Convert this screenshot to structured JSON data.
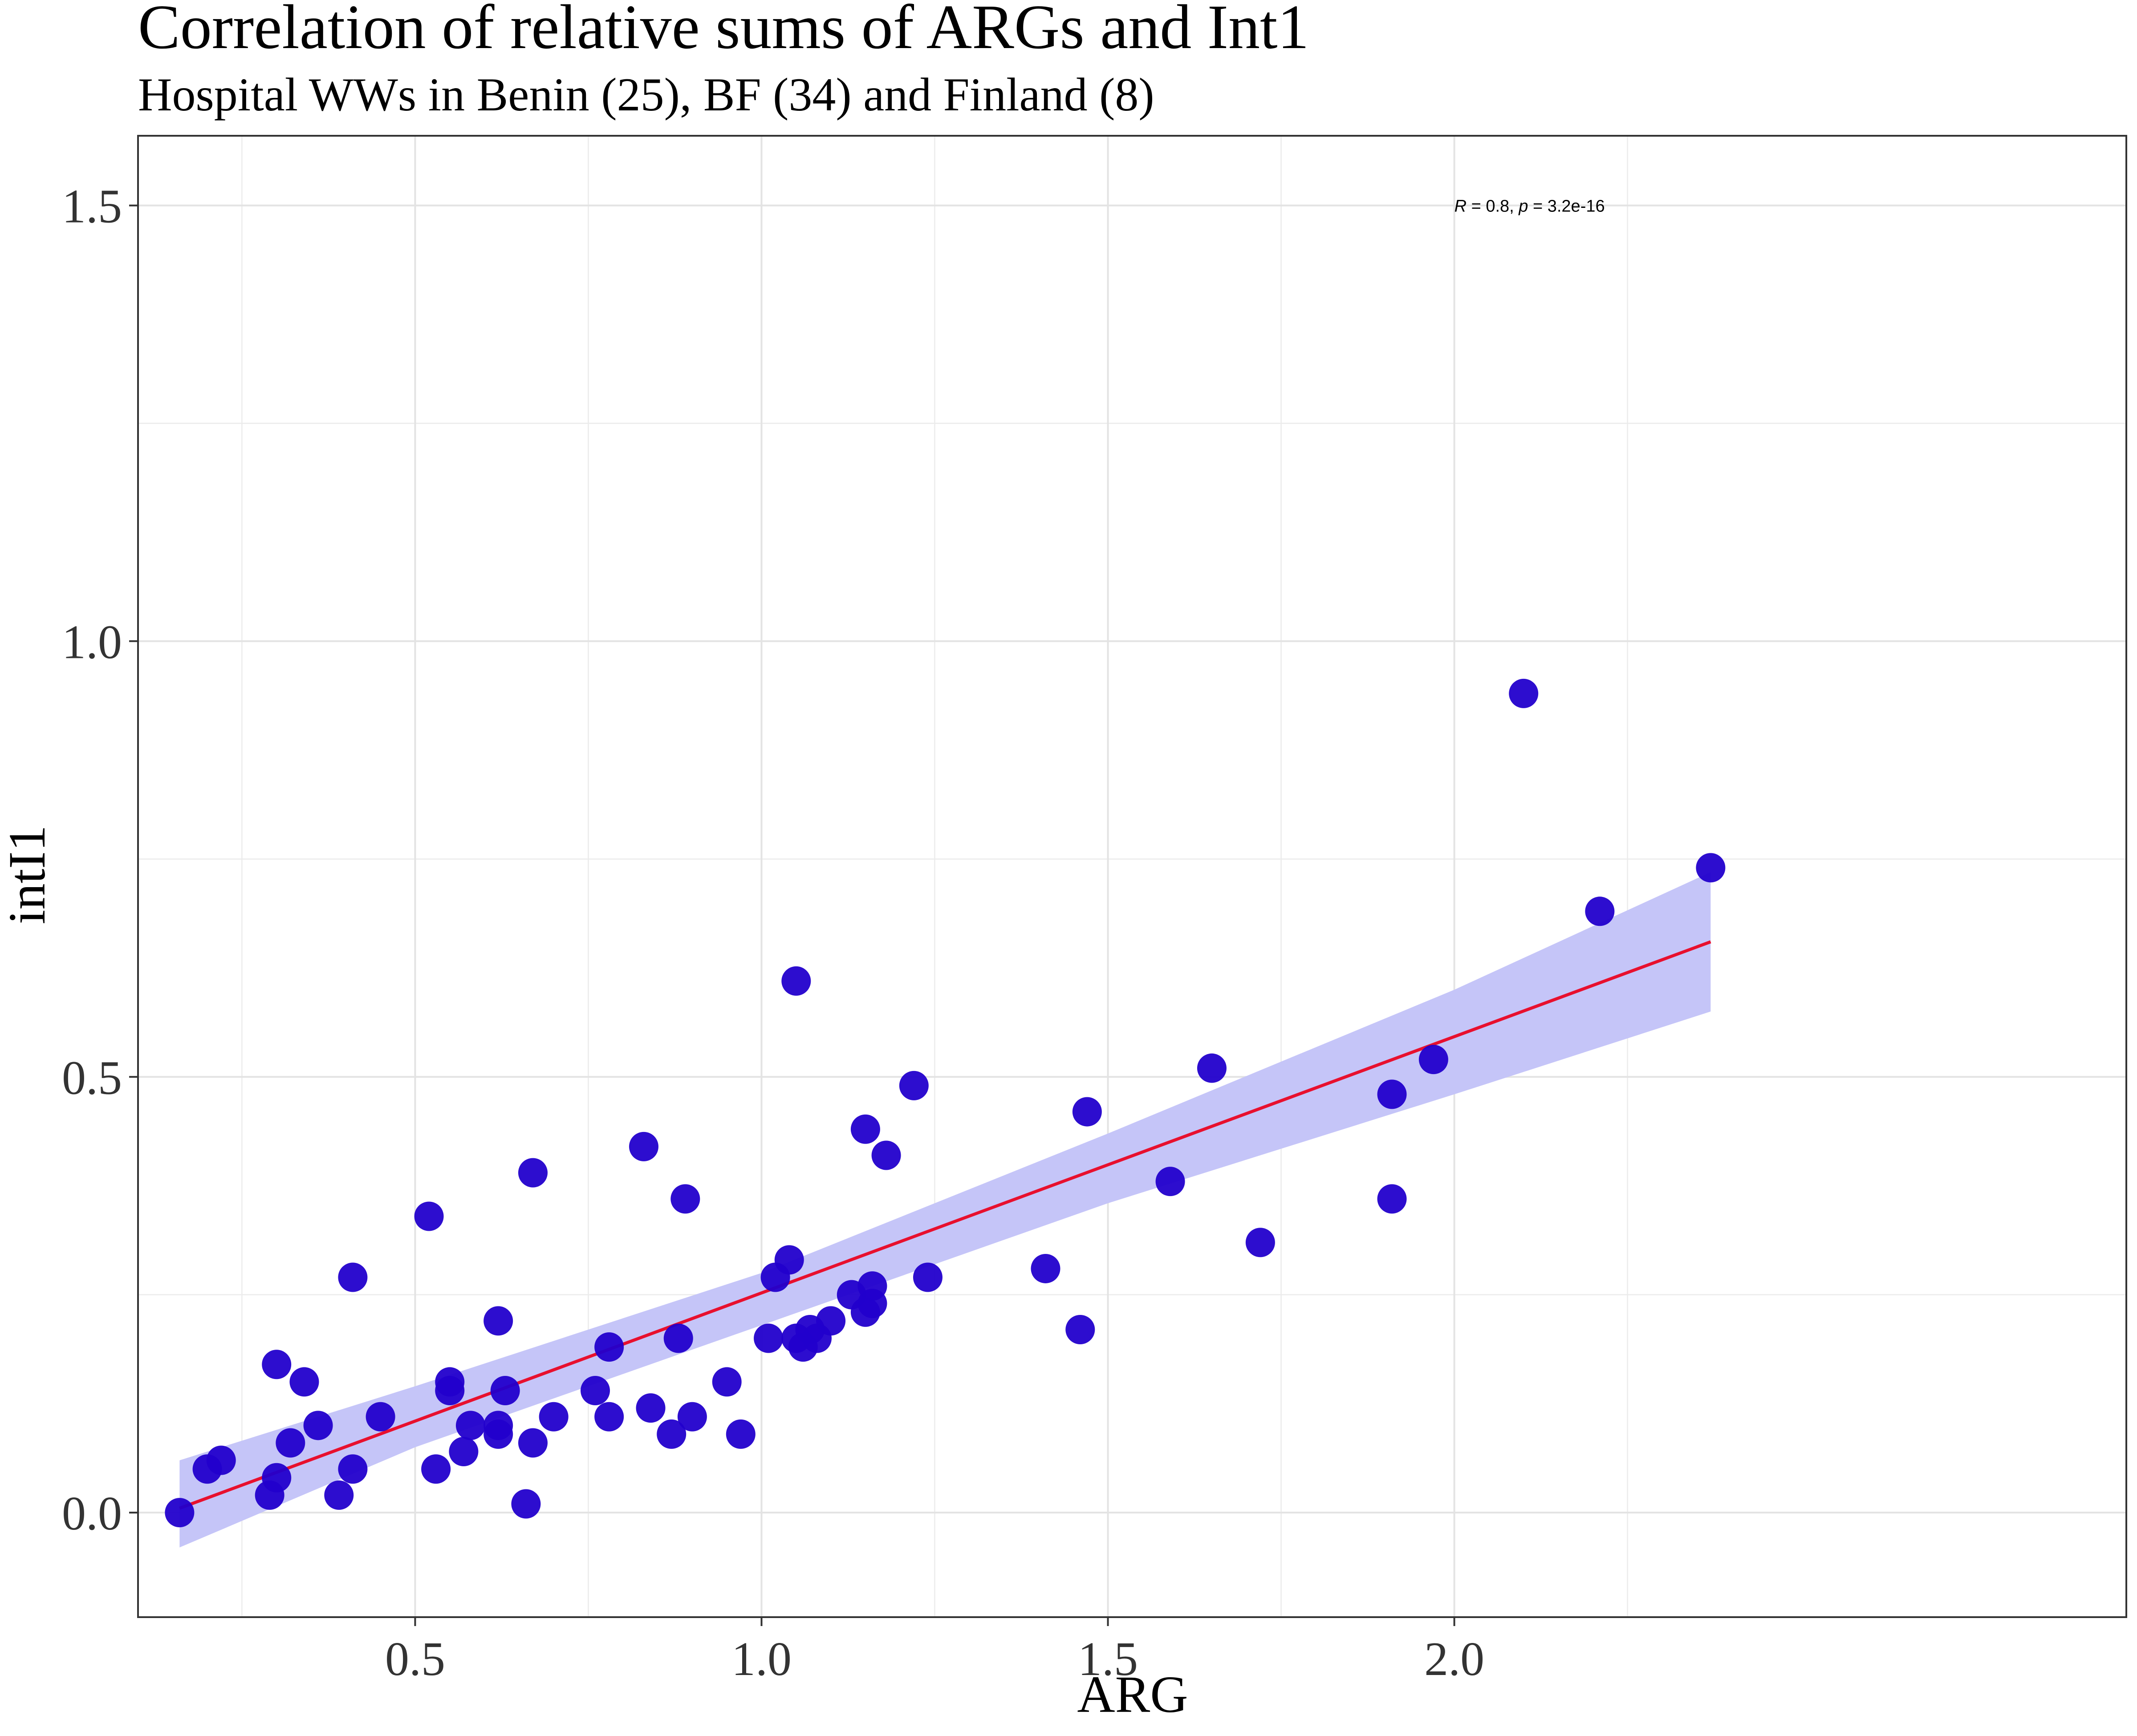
{
  "chart_data": {
    "type": "scatter",
    "title": "Correlation of relative sums of ARGs and Int1",
    "subtitle": "Hospital WWs in Benin (25), BF (34) and Finland (8)",
    "xlabel": "ARG",
    "ylabel": "intI1",
    "xlim": [
      0.1,
      2.97
    ],
    "ylim": [
      -0.12,
      1.58
    ],
    "xticks": [
      0.5,
      1.0,
      1.5,
      2.0
    ],
    "xtick_labels": [
      "0.5",
      "1.0",
      "1.5",
      "2.0"
    ],
    "yticks": [
      0.0,
      0.5,
      1.0,
      1.5
    ],
    "ytick_labels": [
      "0.0",
      "0.5",
      "1.0",
      "1.5"
    ],
    "grid": true,
    "annotation": {
      "r_label": "R",
      "r_value": " = 0.8, ",
      "p_label": "p",
      "p_value": " = 3.2e-16",
      "x": 2.0,
      "y": 1.5
    },
    "colors": {
      "points": "#2200cc",
      "regression_line": "#e8102e",
      "confidence_band": "#c5c5f8",
      "grid": "#ebebeb",
      "panel_border": "#333333"
    },
    "regression": {
      "x": [
        0.16,
        2.37
      ],
      "y": [
        0.005,
        0.655
      ],
      "band": {
        "x": [
          0.16,
          0.5,
          1.0,
          1.5,
          2.0,
          2.37
        ],
        "lower": [
          -0.04,
          0.075,
          0.215,
          0.355,
          0.48,
          0.575
        ],
        "upper": [
          0.06,
          0.145,
          0.275,
          0.435,
          0.6,
          0.735
        ]
      }
    },
    "series": [
      {
        "points": [
          [
            0.16,
            0.0
          ],
          [
            0.2,
            0.05
          ],
          [
            0.22,
            0.06
          ],
          [
            0.29,
            0.02
          ],
          [
            0.3,
            0.04
          ],
          [
            0.3,
            0.17
          ],
          [
            0.32,
            0.08
          ],
          [
            0.34,
            0.15
          ],
          [
            0.36,
            0.1
          ],
          [
            0.39,
            0.02
          ],
          [
            0.41,
            0.27
          ],
          [
            0.41,
            0.05
          ],
          [
            0.45,
            0.11
          ],
          [
            0.52,
            0.34
          ],
          [
            0.53,
            0.05
          ],
          [
            0.55,
            0.14
          ],
          [
            0.55,
            0.15
          ],
          [
            0.57,
            0.07
          ],
          [
            0.58,
            0.1
          ],
          [
            0.62,
            0.1
          ],
          [
            0.62,
            0.22
          ],
          [
            0.62,
            0.09
          ],
          [
            0.63,
            0.14
          ],
          [
            0.66,
            0.01
          ],
          [
            0.67,
            0.08
          ],
          [
            0.67,
            0.39
          ],
          [
            0.7,
            0.11
          ],
          [
            0.76,
            0.14
          ],
          [
            0.78,
            0.19
          ],
          [
            0.78,
            0.11
          ],
          [
            0.83,
            0.42
          ],
          [
            0.84,
            0.12
          ],
          [
            0.87,
            0.09
          ],
          [
            0.88,
            0.2
          ],
          [
            0.89,
            0.36
          ],
          [
            0.9,
            0.11
          ],
          [
            0.95,
            0.15
          ],
          [
            0.97,
            0.09
          ],
          [
            1.01,
            0.2
          ],
          [
            1.02,
            0.27
          ],
          [
            1.04,
            0.29
          ],
          [
            1.05,
            0.2
          ],
          [
            1.05,
            0.61
          ],
          [
            1.06,
            0.19
          ],
          [
            1.07,
            0.21
          ],
          [
            1.08,
            0.2
          ],
          [
            1.1,
            0.22
          ],
          [
            1.13,
            0.25
          ],
          [
            1.15,
            0.23
          ],
          [
            1.15,
            0.44
          ],
          [
            1.16,
            0.24
          ],
          [
            1.16,
            0.26
          ],
          [
            1.18,
            0.41
          ],
          [
            1.22,
            0.49
          ],
          [
            1.24,
            0.27
          ],
          [
            1.41,
            0.28
          ],
          [
            1.46,
            0.21
          ],
          [
            1.47,
            0.46
          ],
          [
            1.59,
            0.38
          ],
          [
            1.65,
            0.51
          ],
          [
            1.72,
            0.31
          ],
          [
            1.91,
            0.36
          ],
          [
            1.91,
            0.48
          ],
          [
            1.97,
            0.52
          ],
          [
            2.1,
            0.94
          ],
          [
            2.21,
            0.69
          ],
          [
            2.37,
            0.74
          ]
        ]
      }
    ]
  }
}
